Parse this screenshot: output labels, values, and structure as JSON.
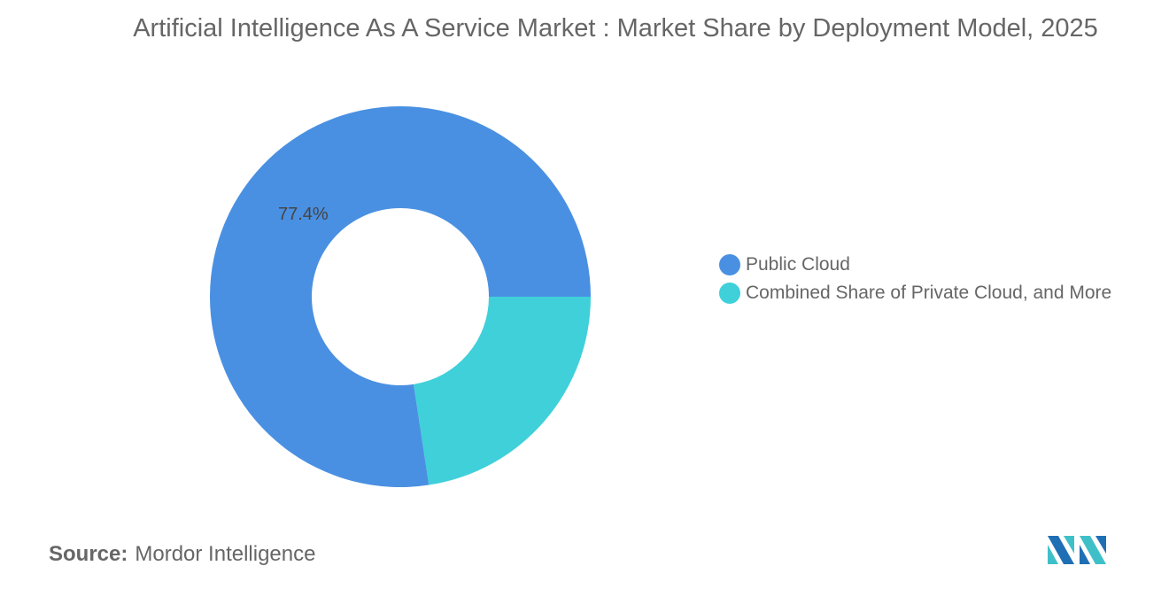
{
  "chart_data": {
    "type": "pie",
    "donut": true,
    "title": "Artificial Intelligence As A Service Market : Market Share by Deployment Model, 2025",
    "slices": [
      {
        "label": "Public Cloud",
        "value": 77.4,
        "data_label": "77.4%",
        "color": "#4a90e2"
      },
      {
        "label": "Combined Share of Private Cloud, and More",
        "value": 22.6,
        "data_label": "",
        "color": "#3fd0da"
      }
    ],
    "legend_position": "right"
  },
  "source": {
    "label": "Source:",
    "value": "Mordor Intelligence"
  },
  "logo": {
    "name": "mordor-intelligence-logo"
  }
}
